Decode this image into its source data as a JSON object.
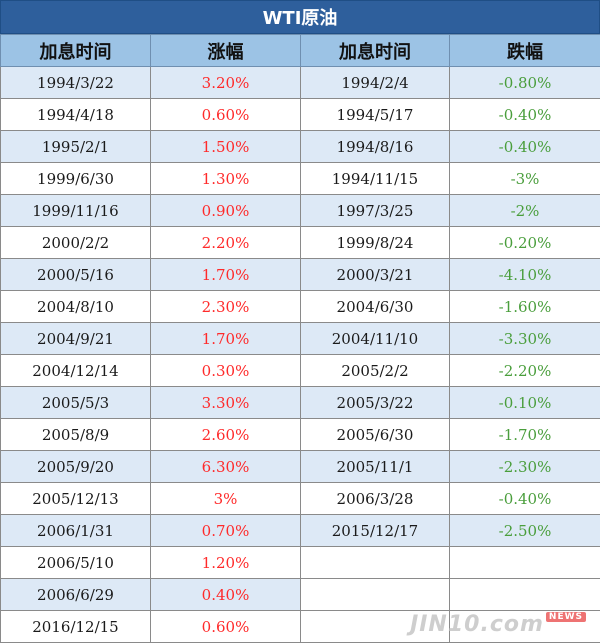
{
  "title": "WTI原油",
  "headers": [
    "加息时间",
    "涨幅",
    "加息时间",
    "跌幅"
  ],
  "rows": [
    {
      "date_up": "1994/3/22",
      "up": "3.20%",
      "date_down": "1994/2/4",
      "down": "-0.80%"
    },
    {
      "date_up": "1994/4/18",
      "up": "0.60%",
      "date_down": "1994/5/17",
      "down": "-0.40%"
    },
    {
      "date_up": "1995/2/1",
      "up": "1.50%",
      "date_down": "1994/8/16",
      "down": "-0.40%"
    },
    {
      "date_up": "1999/6/30",
      "up": "1.30%",
      "date_down": "1994/11/15",
      "down": "-3%"
    },
    {
      "date_up": "1999/11/16",
      "up": "0.90%",
      "date_down": "1997/3/25",
      "down": "-2%"
    },
    {
      "date_up": "2000/2/2",
      "up": "2.20%",
      "date_down": "1999/8/24",
      "down": "-0.20%"
    },
    {
      "date_up": "2000/5/16",
      "up": "1.70%",
      "date_down": "2000/3/21",
      "down": "-4.10%"
    },
    {
      "date_up": "2004/8/10",
      "up": "2.30%",
      "date_down": "2004/6/30",
      "down": "-1.60%"
    },
    {
      "date_up": "2004/9/21",
      "up": "1.70%",
      "date_down": "2004/11/10",
      "down": "-3.30%"
    },
    {
      "date_up": "2004/12/14",
      "up": "0.30%",
      "date_down": "2005/2/2",
      "down": "-2.20%"
    },
    {
      "date_up": "2005/5/3",
      "up": "3.30%",
      "date_down": "2005/3/22",
      "down": "-0.10%"
    },
    {
      "date_up": "2005/8/9",
      "up": "2.60%",
      "date_down": "2005/6/30",
      "down": "-1.70%"
    },
    {
      "date_up": "2005/9/20",
      "up": "6.30%",
      "date_down": "2005/11/1",
      "down": "-2.30%"
    },
    {
      "date_up": "2005/12/13",
      "up": "3%",
      "date_down": "2006/3/28",
      "down": "-0.40%"
    },
    {
      "date_up": "2006/1/31",
      "up": "0.70%",
      "date_down": "2015/12/17",
      "down": "-2.50%"
    },
    {
      "date_up": "2006/5/10",
      "up": "1.20%",
      "date_down": "",
      "down": ""
    },
    {
      "date_up": "2006/6/29",
      "up": "0.40%",
      "date_down": "",
      "down": ""
    },
    {
      "date_up": "2016/12/15",
      "up": "0.60%",
      "date_down": "",
      "down": ""
    }
  ],
  "watermark": {
    "text": "JIN10.com",
    "badge": "NEWS"
  },
  "colors": {
    "header_bg": "#2e5f9c",
    "col_header_bg": "#9cc3e5",
    "stripe": "#dde9f6",
    "up": "#ff2a2a",
    "down": "#4a9e3c"
  }
}
